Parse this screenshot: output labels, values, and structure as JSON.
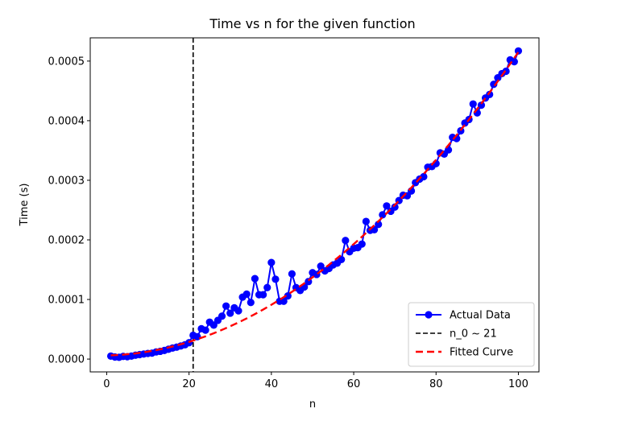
{
  "chart_data": {
    "type": "line",
    "title": "Time vs n for the given function",
    "xlabel": "n",
    "ylabel": "Time (s)",
    "xlim": [
      -4,
      105
    ],
    "ylim": [
      -2.15e-05,
      0.000539
    ],
    "xticks": [
      0,
      20,
      40,
      60,
      80,
      100
    ],
    "xtick_labels": [
      "0",
      "20",
      "40",
      "60",
      "80",
      "100"
    ],
    "yticks": [
      0,
      0.0001,
      0.0002,
      0.0003,
      0.0004,
      0.0005
    ],
    "ytick_labels": [
      "0.0000",
      "0.0001",
      "0.0002",
      "0.0003",
      "0.0004",
      "0.0005"
    ],
    "grid": false,
    "legend_position": "lower-right",
    "series": [
      {
        "name": "Actual Data",
        "style": "line-with-markers",
        "color": "#0000ff",
        "x": [
          1,
          2,
          3,
          4,
          5,
          6,
          7,
          8,
          9,
          10,
          11,
          12,
          13,
          14,
          15,
          16,
          17,
          18,
          19,
          20,
          21,
          22,
          23,
          24,
          25,
          26,
          27,
          28,
          29,
          30,
          31,
          32,
          33,
          34,
          35,
          36,
          37,
          38,
          39,
          40,
          41,
          42,
          43,
          44,
          45,
          46,
          47,
          48,
          49,
          50,
          51,
          52,
          53,
          54,
          55,
          56,
          57,
          58,
          59,
          60,
          61,
          62,
          63,
          64,
          65,
          66,
          67,
          68,
          69,
          70,
          71,
          72,
          73,
          74,
          75,
          76,
          77,
          78,
          79,
          80,
          81,
          82,
          83,
          84,
          85,
          86,
          87,
          88,
          89,
          90,
          91,
          92,
          93,
          94,
          95,
          96,
          97,
          98,
          99,
          100
        ],
        "y": [
          5e-06,
          3.5e-06,
          3e-06,
          4.5e-06,
          4e-06,
          5e-06,
          6.5e-06,
          7.5e-06,
          8.5e-06,
          9.5e-06,
          1e-05,
          1.2e-05,
          1.3e-05,
          1.45e-05,
          1.65e-05,
          1.85e-05,
          2e-05,
          2.2e-05,
          2.4e-05,
          2.75e-05,
          4e-05,
          3.75e-05,
          5.1e-05,
          4.85e-05,
          6.2e-05,
          5.7e-05,
          6.5e-05,
          7.2e-05,
          8.9e-05,
          7.7e-05,
          8.6e-05,
          8.1e-05,
          0.000104,
          0.000109,
          9.5e-05,
          0.000135,
          0.000108,
          0.000108,
          0.00012,
          0.000162,
          0.000134,
          9.7e-05,
          9.7e-05,
          0.000106,
          0.000143,
          0.00012,
          0.000115,
          0.000121,
          0.00013,
          0.000145,
          0.000142,
          0.000156,
          0.000148,
          0.000152,
          0.000158,
          0.000161,
          0.000167,
          0.000199,
          0.00018,
          0.000186,
          0.000187,
          0.000193,
          0.000231,
          0.000216,
          0.000217,
          0.000226,
          0.000242,
          0.000257,
          0.000248,
          0.000255,
          0.000266,
          0.000275,
          0.000274,
          0.000282,
          0.000296,
          0.000302,
          0.000306,
          0.000322,
          0.000323,
          0.000328,
          0.000346,
          0.000344,
          0.000351,
          0.000372,
          0.00037,
          0.000383,
          0.000396,
          0.000402,
          0.000428,
          0.000413,
          0.000426,
          0.000438,
          0.000444,
          0.000461,
          0.000472,
          0.000479,
          0.000483,
          0.000502,
          0.000499,
          0.000517
        ]
      },
      {
        "name": "n_0 ~ 21",
        "style": "dashed-vertical",
        "color": "#000000",
        "x_value": 21
      },
      {
        "name": "Fitted Curve",
        "style": "dashed",
        "color": "#ff0000",
        "fit": {
          "a": 4.94e-08,
          "b": 1.5e-07,
          "c": 6.1e-06
        }
      }
    ]
  }
}
